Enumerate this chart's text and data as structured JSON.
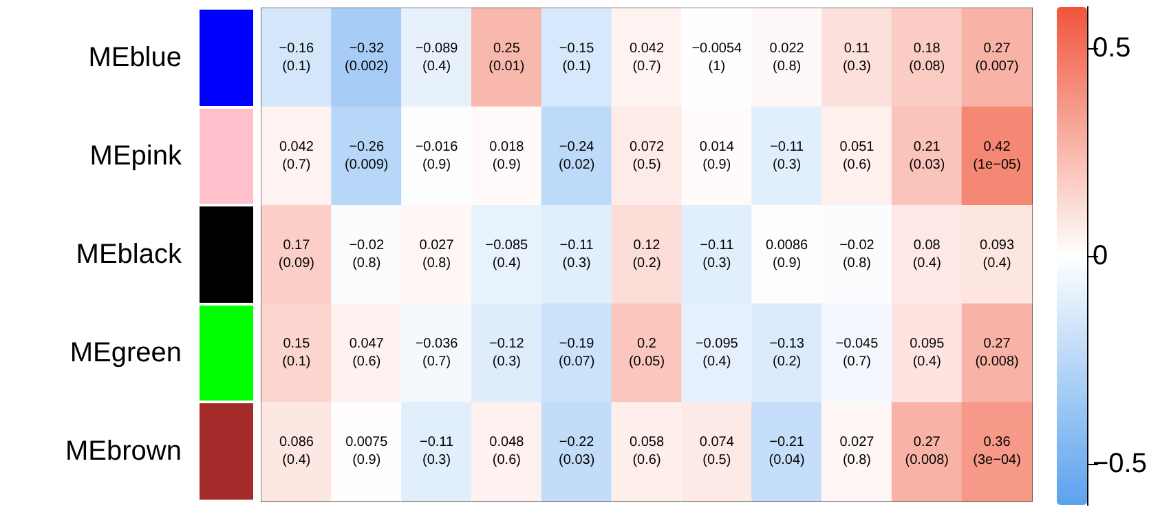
{
  "chart_data": {
    "type": "heatmap",
    "categories": [
      null,
      null,
      null,
      null,
      null,
      null,
      null,
      null,
      null,
      null,
      null
    ],
    "y_categories": [
      "MEblue",
      "MEpink",
      "MEblack",
      "MEgreen",
      "MEbrown"
    ],
    "cells": [
      [
        -0.16,
        -0.32,
        -0.089,
        0.25,
        -0.15,
        0.042,
        -0.0054,
        0.022,
        0.11,
        0.18,
        0.27
      ],
      [
        0.042,
        -0.26,
        -0.016,
        0.018,
        -0.24,
        0.072,
        0.014,
        -0.11,
        0.051,
        0.21,
        0.42
      ],
      [
        0.17,
        -0.02,
        0.027,
        -0.085,
        -0.11,
        0.12,
        -0.11,
        0.0086,
        -0.02,
        0.08,
        0.093
      ],
      [
        0.15,
        0.047,
        -0.036,
        -0.12,
        -0.19,
        0.2,
        -0.095,
        -0.13,
        -0.045,
        0.095,
        0.27
      ],
      [
        0.086,
        0.0075,
        -0.11,
        0.048,
        -0.22,
        0.058,
        0.074,
        -0.21,
        0.027,
        0.27,
        0.36
      ]
    ],
    "cell_labels": [
      [
        "−0.16\n(0.1)",
        "−0.32\n(0.002)",
        "−0.089\n(0.4)",
        "0.25\n(0.01)",
        "−0.15\n(0.1)",
        "0.042\n(0.7)",
        "−0.0054\n(1)",
        "0.022\n(0.8)",
        "0.11\n(0.3)",
        "0.18\n(0.08)",
        "0.27\n(0.007)"
      ],
      [
        "0.042\n(0.7)",
        "−0.26\n(0.009)",
        "−0.016\n(0.9)",
        "0.018\n(0.9)",
        "−0.24\n(0.02)",
        "0.072\n(0.5)",
        "0.014\n(0.9)",
        "−0.11\n(0.3)",
        "0.051\n(0.6)",
        "0.21\n(0.03)",
        "0.42\n(1e−05)"
      ],
      [
        "0.17\n(0.09)",
        "−0.02\n(0.8)",
        "0.027\n(0.8)",
        "−0.085\n(0.4)",
        "−0.11\n(0.3)",
        "0.12\n(0.2)",
        "−0.11\n(0.3)",
        "0.0086\n(0.9)",
        "−0.02\n(0.8)",
        "0.08\n(0.4)",
        "0.093\n(0.4)"
      ],
      [
        "0.15\n(0.1)",
        "0.047\n(0.6)",
        "−0.036\n(0.7)",
        "−0.12\n(0.3)",
        "−0.19\n(0.07)",
        "0.2\n(0.05)",
        "−0.095\n(0.4)",
        "−0.13\n(0.2)",
        "−0.045\n(0.7)",
        "0.095\n(0.4)",
        "0.27\n(0.008)"
      ],
      [
        "0.086\n(0.4)",
        "0.0075\n(0.9)",
        "−0.11\n(0.3)",
        "0.048\n(0.6)",
        "−0.22\n(0.03)",
        "0.058\n(0.6)",
        "0.074\n(0.5)",
        "−0.21\n(0.04)",
        "0.027\n(0.8)",
        "0.27\n(0.008)",
        "0.36\n(3e−04)"
      ]
    ],
    "clim": [
      -0.6,
      0.6
    ],
    "cticks": [
      {
        "value": -0.5,
        "label": "−0.5"
      },
      0,
      0.5
    ]
  }
}
